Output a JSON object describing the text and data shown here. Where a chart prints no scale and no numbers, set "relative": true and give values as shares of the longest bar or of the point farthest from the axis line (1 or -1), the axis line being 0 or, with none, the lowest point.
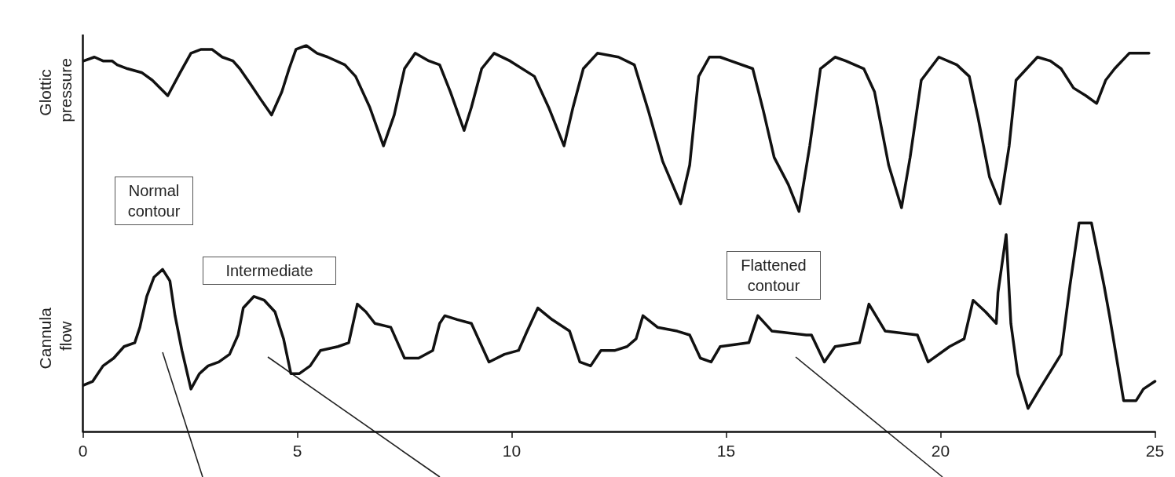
{
  "chart_data": {
    "type": "line",
    "relative": true,
    "xlim": [
      0,
      25
    ],
    "xticks": [
      0,
      5,
      10,
      15,
      20,
      25
    ],
    "marker": "none",
    "line_style": "solid",
    "series": [
      {
        "name": "Glottic pressure",
        "color": "#111111",
        "x": [
          0.02,
          0.27,
          0.47,
          0.68,
          0.8,
          1.04,
          1.37,
          1.62,
          1.98,
          2.27,
          2.52,
          2.76,
          3.01,
          3.25,
          3.5,
          3.66,
          3.91,
          4.15,
          4.4,
          4.64,
          4.81,
          4.97,
          5.21,
          5.46,
          5.71,
          6.11,
          6.36,
          6.69,
          7.01,
          7.26,
          7.5,
          7.75,
          8.07,
          8.32,
          8.57,
          8.89,
          9.06,
          9.3,
          9.59,
          9.96,
          10.53,
          10.86,
          11.22,
          11.43,
          11.67,
          12.0,
          12.49,
          12.86,
          13.19,
          13.52,
          13.94,
          14.15,
          14.36,
          14.61,
          14.86,
          15.11,
          15.62,
          15.87,
          16.12,
          16.45,
          16.7,
          16.95,
          17.2,
          17.54,
          17.79,
          18.21,
          18.46,
          18.79,
          19.09,
          19.29,
          19.55,
          19.96,
          20.38,
          20.67,
          20.88,
          21.14,
          21.39,
          21.6,
          21.76,
          22.26,
          22.56,
          22.81,
          23.1,
          23.39,
          23.64,
          23.85,
          24.06,
          24.4,
          24.86
        ],
        "values": [
          0.96,
          0.97,
          0.96,
          0.96,
          0.95,
          0.94,
          0.93,
          0.91,
          0.87,
          0.93,
          0.98,
          0.99,
          0.99,
          0.97,
          0.96,
          0.94,
          0.9,
          0.86,
          0.82,
          0.88,
          0.94,
          0.99,
          1.0,
          0.98,
          0.97,
          0.95,
          0.92,
          0.84,
          0.74,
          0.82,
          0.94,
          0.98,
          0.96,
          0.95,
          0.88,
          0.78,
          0.84,
          0.94,
          0.98,
          0.96,
          0.92,
          0.84,
          0.74,
          0.84,
          0.94,
          0.98,
          0.97,
          0.95,
          0.83,
          0.7,
          0.59,
          0.69,
          0.92,
          0.97,
          0.97,
          0.96,
          0.94,
          0.83,
          0.71,
          0.64,
          0.57,
          0.74,
          0.94,
          0.97,
          0.96,
          0.94,
          0.88,
          0.69,
          0.58,
          0.71,
          0.91,
          0.97,
          0.95,
          0.92,
          0.81,
          0.66,
          0.59,
          0.74,
          0.91,
          0.97,
          0.96,
          0.94,
          0.89,
          0.87,
          0.85,
          0.91,
          0.94,
          0.98,
          0.98
        ]
      },
      {
        "name": "Cannula flow",
        "color": "#111111",
        "x": [
          0.02,
          0.23,
          0.47,
          0.72,
          0.96,
          1.21,
          1.33,
          1.49,
          1.66,
          1.86,
          2.03,
          2.15,
          2.31,
          2.52,
          2.72,
          2.92,
          3.17,
          3.42,
          3.62,
          3.74,
          3.99,
          4.23,
          4.48,
          4.68,
          4.85,
          5.05,
          5.3,
          5.54,
          5.95,
          6.2,
          6.4,
          6.6,
          6.81,
          7.18,
          7.5,
          7.83,
          8.16,
          8.32,
          8.44,
          8.73,
          9.06,
          9.47,
          9.83,
          10.16,
          10.36,
          10.61,
          10.94,
          11.35,
          11.59,
          11.84,
          12.08,
          12.41,
          12.69,
          12.9,
          13.06,
          13.4,
          13.86,
          14.15,
          14.4,
          14.65,
          14.86,
          15.53,
          15.74,
          16.07,
          16.87,
          16.99,
          17.29,
          17.54,
          18.11,
          18.33,
          18.71,
          19.46,
          19.71,
          20.21,
          20.55,
          20.76,
          21.05,
          21.3,
          21.34,
          21.53,
          21.64,
          21.8,
          22.04,
          22.31,
          22.81,
          23.02,
          23.23,
          23.52,
          23.81,
          23.94,
          24.27,
          24.56,
          24.73,
          25.0
        ],
        "values": [
          0.12,
          0.13,
          0.17,
          0.19,
          0.22,
          0.23,
          0.27,
          0.35,
          0.4,
          0.42,
          0.39,
          0.3,
          0.21,
          0.11,
          0.15,
          0.17,
          0.18,
          0.2,
          0.25,
          0.32,
          0.35,
          0.34,
          0.31,
          0.24,
          0.15,
          0.15,
          0.17,
          0.21,
          0.22,
          0.23,
          0.33,
          0.31,
          0.28,
          0.27,
          0.19,
          0.19,
          0.21,
          0.28,
          0.3,
          0.29,
          0.28,
          0.18,
          0.2,
          0.21,
          0.26,
          0.32,
          0.29,
          0.26,
          0.18,
          0.17,
          0.21,
          0.21,
          0.22,
          0.24,
          0.3,
          0.27,
          0.26,
          0.25,
          0.19,
          0.18,
          0.22,
          0.23,
          0.3,
          0.26,
          0.25,
          0.25,
          0.18,
          0.22,
          0.23,
          0.33,
          0.26,
          0.25,
          0.18,
          0.22,
          0.24,
          0.34,
          0.31,
          0.28,
          0.36,
          0.51,
          0.28,
          0.15,
          0.06,
          0.11,
          0.2,
          0.38,
          0.54,
          0.54,
          0.38,
          0.3,
          0.08,
          0.08,
          0.11,
          0.13
        ]
      }
    ],
    "annotations": [
      "Normal contour",
      "Intermediate",
      "Flattened contour"
    ]
  }
}
